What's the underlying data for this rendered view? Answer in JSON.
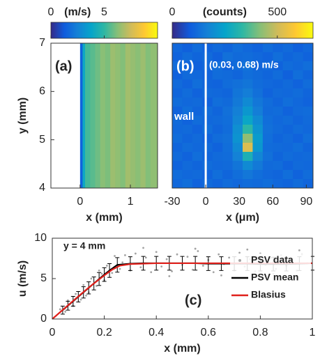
{
  "chart_data": [
    {
      "type": "heatmap",
      "label": "(a)",
      "colormap": "parula",
      "colorbar_label": "(m/s)",
      "clim": [
        0,
        10
      ],
      "cticks": [
        0,
        5
      ],
      "xlabel": "x (mm)",
      "ylabel": "y (mm)",
      "xlim": [
        -0.58,
        1.54
      ],
      "xticks": [
        0,
        1
      ],
      "ylim": [
        4,
        7
      ],
      "yticks": [
        4,
        5,
        6,
        7
      ],
      "xbins": [
        0,
        0.05,
        0.1,
        0.2,
        0.3,
        0.4,
        0.5,
        0.6,
        0.7,
        0.8,
        0.9,
        1,
        1.1,
        1.2,
        1.3,
        1.4,
        1.54
      ],
      "values": [
        1.5,
        4.0,
        5.3,
        5.6,
        5.9,
        6.3,
        6.1,
        6.6,
        6.4,
        6.2,
        6.7,
        6.5,
        6.3,
        6.6,
        6.2,
        6.4
      ]
    },
    {
      "type": "heatmap",
      "label": "(b)",
      "colormap": "parula",
      "colorbar_label": "(counts)",
      "clim": [
        0,
        670
      ],
      "cticks": [
        0,
        500
      ],
      "annotation": "(0.03, 0.68) m/s",
      "wall_label": "wall",
      "wall_x": 0,
      "xlabel": "x (μm)",
      "xlim": [
        -30,
        96
      ],
      "xticks": [
        -30,
        0,
        30,
        60,
        90
      ],
      "xbins": [
        -30,
        -21,
        -12,
        -3,
        6,
        15,
        24,
        33,
        42,
        51,
        60,
        69,
        78,
        87,
        96
      ],
      "z": [
        [
          110,
          95,
          120,
          100,
          115,
          105,
          125,
          110,
          100,
          120,
          105,
          115,
          95,
          110
        ],
        [
          100,
          120,
          105,
          115,
          95,
          130,
          115,
          120,
          110,
          100,
          125,
          105,
          115,
          100
        ],
        [
          120,
          105,
          95,
          110,
          125,
          100,
          120,
          135,
          105,
          115,
          100,
          120,
          110,
          125
        ],
        [
          95,
          115,
          110,
          100,
          120,
          115,
          105,
          125,
          115,
          105,
          120,
          95,
          125,
          105
        ],
        [
          115,
          100,
          125,
          105,
          100,
          120,
          130,
          140,
          120,
          110,
          105,
          115,
          100,
          120
        ],
        [
          105,
          120,
          100,
          115,
          110,
          105,
          140,
          160,
          130,
          100,
          115,
          110,
          120,
          105
        ],
        [
          120,
          110,
          115,
          95,
          125,
          115,
          150,
          190,
          145,
          120,
          105,
          125,
          110,
          100
        ],
        [
          100,
          125,
          105,
          120,
          105,
          130,
          165,
          220,
          160,
          115,
          120,
          100,
          115,
          120
        ],
        [
          115,
          100,
          120,
          110,
          115,
          125,
          180,
          260,
          190,
          125,
          110,
          120,
          105,
          115
        ],
        [
          110,
          115,
          100,
          125,
          105,
          120,
          200,
          330,
          210,
          130,
          115,
          105,
          120,
          110
        ],
        [
          120,
          105,
          115,
          100,
          120,
          130,
          210,
          430,
          230,
          125,
          105,
          115,
          100,
          125
        ],
        [
          105,
          120,
          110,
          115,
          100,
          125,
          190,
          520,
          220,
          120,
          115,
          110,
          125,
          105
        ],
        [
          115,
          100,
          125,
          105,
          115,
          120,
          170,
          300,
          180,
          130,
          105,
          120,
          110,
          115
        ],
        [
          100,
          115,
          105,
          120,
          110,
          115,
          140,
          190,
          150,
          115,
          120,
          100,
          115,
          110
        ],
        [
          120,
          110,
          115,
          100,
          125,
          105,
          125,
          145,
          125,
          110,
          105,
          125,
          100,
          120
        ],
        [
          110,
          125,
          100,
          115,
          105,
          120,
          110,
          120,
          115,
          125,
          110,
          105,
          120,
          105
        ]
      ]
    },
    {
      "type": "line",
      "label": "(c)",
      "annotation": "y = 4 mm",
      "xlabel": "x (mm)",
      "ylabel": "u (m/s)",
      "xlim": [
        0,
        1
      ],
      "xticks": [
        0,
        0.2,
        0.4,
        0.6,
        0.8,
        1
      ],
      "ylim": [
        0,
        10
      ],
      "yticks": [
        0,
        5,
        10
      ],
      "legend": "center right",
      "series": [
        {
          "name": "PSV data",
          "color": "#a3a3a3",
          "mode": "markers",
          "x": [
            0.03,
            0.05,
            0.06,
            0.08,
            0.09,
            0.11,
            0.12,
            0.14,
            0.15,
            0.17,
            0.18,
            0.2,
            0.21,
            0.23,
            0.24,
            0.26,
            0.28,
            0.3,
            0.32,
            0.34,
            0.36,
            0.38,
            0.4,
            0.42,
            0.44,
            0.46,
            0.48,
            0.5,
            0.52,
            0.54,
            0.56,
            0.58,
            0.6,
            0.62,
            0.64,
            0.66,
            0.68,
            0.7,
            0.72,
            0.74,
            0.76,
            0.78,
            0.8,
            0.82,
            0.84,
            0.86,
            0.88,
            0.9,
            0.92,
            0.94,
            0.96,
            0.98,
            0.13,
            0.19,
            0.27,
            0.35,
            0.45,
            0.55,
            0.65,
            0.75,
            0.85,
            0.95
          ],
          "values": [
            1.2,
            0.9,
            2.3,
            1.6,
            3.1,
            2.4,
            4.2,
            3.3,
            5.0,
            4.1,
            6.0,
            4.8,
            6.6,
            5.7,
            7.8,
            6.2,
            7.9,
            6.0,
            8.1,
            6.4,
            7.6,
            5.8,
            8.3,
            6.5,
            7.4,
            5.9,
            8.0,
            6.7,
            7.7,
            6.1,
            8.4,
            6.6,
            7.3,
            5.8,
            8.0,
            6.8,
            7.6,
            6.0,
            8.2,
            6.5,
            7.4,
            5.9,
            8.1,
            6.7,
            7.5,
            6.2,
            7.9,
            6.6,
            7.2,
            6.0,
            8.0,
            6.9,
            2.9,
            5.6,
            7.0,
            8.8,
            5.3,
            8.7,
            5.4,
            8.6,
            5.6,
            8.5
          ]
        },
        {
          "name": "PSV mean",
          "color": "#000000",
          "mode": "lines",
          "x": [
            0.04,
            0.06,
            0.08,
            0.1,
            0.12,
            0.14,
            0.16,
            0.18,
            0.2,
            0.22,
            0.25,
            0.3,
            0.35,
            0.4,
            0.45,
            0.5,
            0.55,
            0.6,
            0.65,
            0.7,
            0.75,
            0.8,
            0.85,
            0.9,
            0.95,
            1
          ],
          "values": [
            1.1,
            1.65,
            2.2,
            2.75,
            3.3,
            3.85,
            4.4,
            4.95,
            5.5,
            6.0,
            6.7,
            6.85,
            6.9,
            6.9,
            6.9,
            6.9,
            6.9,
            6.85,
            6.85,
            6.85,
            6.85,
            6.8,
            6.8,
            6.8,
            6.85,
            6.9
          ],
          "errors": [
            0.5,
            0.55,
            0.6,
            0.65,
            0.7,
            0.75,
            0.8,
            0.8,
            0.85,
            0.85,
            0.9,
            0.85,
            0.85,
            0.85,
            0.85,
            0.85,
            0.85,
            0.85,
            0.85,
            0.85,
            0.85,
            0.85,
            0.85,
            0.85,
            0.85,
            0.85
          ]
        },
        {
          "name": "Blasius",
          "color": "#e0201b",
          "mode": "lines",
          "x": [
            0,
            0.05,
            0.1,
            0.15,
            0.2,
            0.23,
            0.26,
            0.3,
            0.4,
            0.6,
            0.8,
            1
          ],
          "values": [
            0,
            1.4,
            2.8,
            4.15,
            5.4,
            6.1,
            6.6,
            6.8,
            6.9,
            6.9,
            6.9,
            6.9
          ]
        }
      ]
    }
  ]
}
